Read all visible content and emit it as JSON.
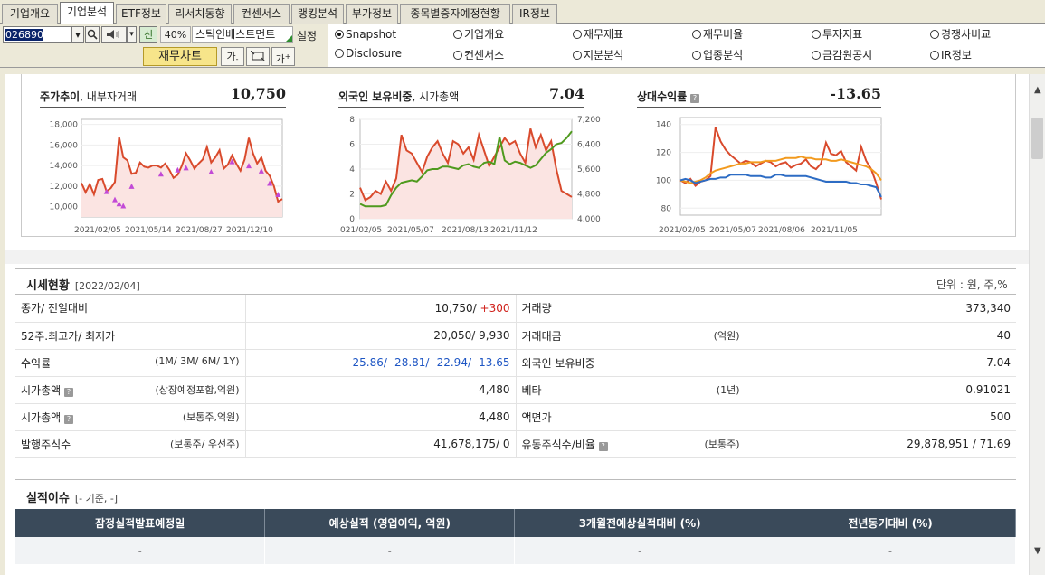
{
  "tabs": [
    {
      "label": "기업개요",
      "active": false
    },
    {
      "label": "기업분석",
      "active": true
    },
    {
      "label": "ETF정보",
      "active": false
    },
    {
      "label": "리서치동향",
      "active": false
    },
    {
      "label": "컨센서스",
      "active": false
    },
    {
      "label": "랭킹분석",
      "active": false
    },
    {
      "label": "부가정보",
      "active": false
    },
    {
      "label": "종목별증자예정현황",
      "active": false
    },
    {
      "label": "IR정보",
      "active": false
    }
  ],
  "toolbar": {
    "code": "026890",
    "credit_badge": "신",
    "margin_pct": "40%",
    "stock_name": "스틱인베스트먼트",
    "settings_label": "설정",
    "financial_chart_button": "재무차트",
    "font_up_label": "가",
    "font_down_label": "가"
  },
  "radio_options": [
    {
      "label": "Snapshot",
      "checked": true
    },
    {
      "label": "기업개요",
      "checked": false
    },
    {
      "label": "재무제표",
      "checked": false
    },
    {
      "label": "재무비율",
      "checked": false
    },
    {
      "label": "투자지표",
      "checked": false
    },
    {
      "label": "경쟁사비교",
      "checked": false
    },
    {
      "label": "Disclosure",
      "checked": false
    },
    {
      "label": "컨센서스",
      "checked": false
    },
    {
      "label": "지분분석",
      "checked": false
    },
    {
      "label": "업종분석",
      "checked": false
    },
    {
      "label": "금감원공시",
      "checked": false
    },
    {
      "label": "IR정보",
      "checked": false
    }
  ],
  "charts": {
    "price": {
      "title": "주가추이",
      "subtitle": ", 내부자거래",
      "value": "10,750"
    },
    "foreign": {
      "title": "외국인 보유비중",
      "subtitle": ", 시가총액",
      "value": "7.04"
    },
    "relative": {
      "title": "상대수익률",
      "value": "-13.65"
    }
  },
  "chart_data": [
    {
      "type": "area",
      "title": "주가추이, 내부자거래",
      "x_labels": [
        "2021/02/05",
        "2021/05/14",
        "2021/08/27",
        "2021/12/10"
      ],
      "y_ticks": [
        "18,000",
        "16,000",
        "14,000",
        "12,000",
        "10,000"
      ],
      "ylim": [
        9000,
        18500
      ],
      "series": [
        {
          "values": [
            12300,
            11400,
            12200,
            11200,
            12600,
            12700,
            11500,
            11800,
            12400,
            16800,
            14800,
            14500,
            13200,
            13300,
            14300,
            13900,
            13800,
            14000,
            14000,
            13800,
            14200,
            13600,
            12800,
            13100,
            14000,
            15200,
            14500,
            13700,
            14200,
            14600,
            15800,
            14300,
            14800,
            15500,
            13700,
            14100,
            15000,
            14200,
            13500,
            14600,
            16700,
            15200,
            14200,
            14800,
            13500,
            13000,
            12000,
            10500,
            10750
          ]
        }
      ],
      "markers": [
        [
          11500,
          6
        ],
        [
          10700,
          8
        ],
        [
          10300,
          9
        ],
        [
          10100,
          10
        ],
        [
          12000,
          12
        ],
        [
          13200,
          19
        ],
        [
          13600,
          23
        ],
        [
          13800,
          25
        ],
        [
          13400,
          31
        ],
        [
          14400,
          36
        ],
        [
          14000,
          40
        ],
        [
          13500,
          43
        ],
        [
          12300,
          45
        ],
        [
          11200,
          47
        ]
      ],
      "fill": "#fbe4e2",
      "line_color": "#d94a2c",
      "marker_color": "#c24ad6"
    },
    {
      "type": "line",
      "title": "외국인 보유비중, 시가총액",
      "x_labels": [
        "021/02/05",
        "2021/05/07",
        "2021/08/13",
        "2021/11/12"
      ],
      "y_ticks_left": [
        "8",
        "6",
        "4",
        "2",
        "0"
      ],
      "y_ticks_right": [
        "7,200",
        "6,400",
        "5,600",
        "4,800",
        "4,000"
      ],
      "ylim_left": [
        0,
        8
      ],
      "ylim_right": [
        4000,
        7200
      ],
      "series": [
        {
          "axis": "right",
          "color": "#d94a2c",
          "fill": "#fbe4e2",
          "values": [
            5000,
            4600,
            4700,
            4900,
            4800,
            5200,
            4900,
            5300,
            6700,
            6200,
            6100,
            5800,
            5500,
            6000,
            6300,
            6500,
            6100,
            5800,
            6500,
            6400,
            6100,
            6300,
            5900,
            6700,
            6200,
            5700,
            6000,
            6300,
            6600,
            6400,
            6500,
            6100,
            5800,
            6900,
            6300,
            6700,
            6200,
            6500,
            5600,
            4900,
            4800,
            4700
          ]
        },
        {
          "axis": "left",
          "color": "#4f9a1e",
          "values": [
            1.2,
            1.0,
            1.0,
            1.0,
            1.0,
            1.1,
            1.9,
            2.5,
            2.9,
            3.0,
            3.1,
            3.0,
            3.4,
            3.9,
            4.0,
            4.0,
            4.2,
            4.2,
            4.1,
            4.0,
            4.3,
            4.4,
            4.2,
            4.1,
            4.5,
            4.6,
            4.4,
            6.6,
            4.7,
            4.4,
            4.6,
            4.5,
            4.3,
            4.1,
            4.3,
            4.8,
            5.3,
            5.6,
            6.0,
            6.1,
            6.5,
            7.04
          ]
        }
      ]
    },
    {
      "type": "line",
      "title": "상대수익률",
      "x_labels": [
        "2021/02/05",
        "2021/05/07",
        "2021/08/06",
        "2021/11/05"
      ],
      "y_ticks": [
        "140",
        "120",
        "100",
        "80"
      ],
      "ylim": [
        75,
        145
      ],
      "series": [
        {
          "color": "#d94a2c",
          "values": [
            100,
            98,
            101,
            96,
            99,
            100,
            103,
            138,
            128,
            122,
            118,
            115,
            112,
            114,
            113,
            110,
            112,
            114,
            113,
            110,
            112,
            113,
            109,
            111,
            112,
            115,
            110,
            108,
            112,
            127,
            119,
            118,
            121,
            113,
            110,
            107,
            124,
            114,
            108,
            98,
            86.35
          ]
        },
        {
          "color": "#f29a1e",
          "values": [
            100,
            99,
            98,
            99,
            100,
            102,
            105,
            107,
            108,
            109,
            110,
            111,
            112,
            112,
            113,
            113,
            113,
            114,
            114,
            114,
            115,
            116,
            116,
            116,
            117,
            116,
            116,
            115,
            115,
            115,
            114,
            114,
            115,
            114,
            113,
            112,
            111,
            110,
            108,
            105,
            100
          ]
        },
        {
          "color": "#2d6cc4",
          "values": [
            100,
            101,
            100,
            98,
            99,
            100,
            101,
            101,
            102,
            102,
            104,
            104,
            104,
            104,
            103,
            103,
            103,
            102,
            102,
            104,
            104,
            103,
            103,
            103,
            103,
            103,
            102,
            101,
            100,
            99,
            99,
            99,
            99,
            99,
            98,
            98,
            97,
            97,
            96,
            95,
            88
          ]
        }
      ]
    }
  ],
  "market": {
    "title": "시세현황",
    "date": "[2022/02/04]",
    "unit": "단위 : 원, 주,%",
    "rows": [
      {
        "l_label": "종가/ 전일대비",
        "l_sub": "",
        "l_val": "10,750/ ",
        "l_val2": "+300",
        "r_label": "거래량",
        "r_sub": "",
        "r_val": "373,340"
      },
      {
        "l_label": "52주.최고가/ 최저가",
        "l_sub": "",
        "l_val": "20,050/ 9,930",
        "l_val2": "",
        "r_label": "거래대금",
        "r_sub": "(억원)",
        "r_val": "40"
      },
      {
        "l_label": "수익률",
        "l_sub": "(1M/ 3M/ 6M/ 1Y)",
        "l_val": "-25.86/ -28.81/ -22.94/ -13.65",
        "l_val2": "",
        "r_label": "외국인 보유비중",
        "r_sub": "",
        "r_val": "7.04"
      },
      {
        "l_label": "시가총액",
        "l_sub": "(상장예정포함,억원)",
        "l_val": "4,480",
        "l_val2": "",
        "r_label": "베타",
        "r_sub": "(1년)",
        "r_val": "0.91021"
      },
      {
        "l_label": "시가총액",
        "l_sub": "(보통주,억원)",
        "l_val": "4,480",
        "l_val2": "",
        "r_label": "액면가",
        "r_sub": "",
        "r_val": "500"
      },
      {
        "l_label": "발행주식수",
        "l_sub": "(보통주/ 우선주)",
        "l_val": "41,678,175/ 0",
        "l_val2": "",
        "r_label": "유동주식수/비율",
        "r_sub": "(보통주)",
        "r_val": "29,878,951 / 71.69"
      }
    ]
  },
  "issue": {
    "title": "실적이슈",
    "base": "[- 기준, -]",
    "headers": [
      "잠정실적발표예정일",
      "예상실적 (영업이익, 억원)",
      "3개월전예상실적대비 (%)",
      "전년동기대비 (%)"
    ],
    "values": [
      "-",
      "-",
      "-",
      "-"
    ]
  }
}
